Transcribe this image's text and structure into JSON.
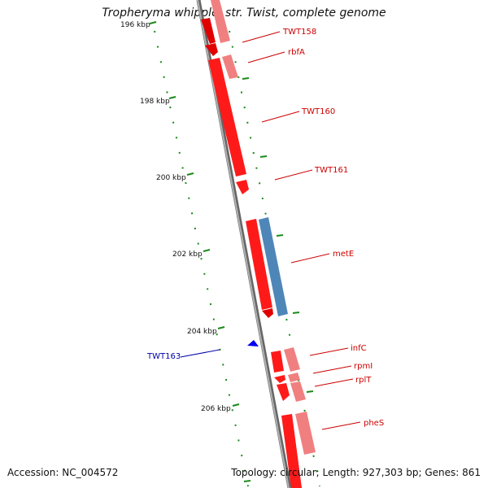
{
  "title": "Tropheryma whipplei str. Twist, complete genome",
  "footer": {
    "accession_label": "Accession: NC_004572",
    "summary": "Topology: circular; Length: 927,303 bp; Genes: 861"
  },
  "colors": {
    "forward_gene": "#ff0000",
    "forward_gene_light": "#f08080",
    "reverse_gene": "#0000cc",
    "blue_feature": "#4f86b8",
    "backbone": "#8a8a8a",
    "tick": "#1a8a1a",
    "label_forward": "#cc0000",
    "label_reverse": "#0000aa"
  },
  "scale": {
    "unit": "kbp",
    "ticks": [
      "196 kbp",
      "198 kbp",
      "200 kbp",
      "202 kbp",
      "204 kbp",
      "206 kbp"
    ]
  },
  "genes": [
    {
      "name": "TWT158",
      "strand": "forward"
    },
    {
      "name": "rbfA",
      "strand": "forward"
    },
    {
      "name": "TWT160",
      "strand": "forward"
    },
    {
      "name": "TWT161",
      "strand": "forward"
    },
    {
      "name": "metE",
      "strand": "forward"
    },
    {
      "name": "TWT163",
      "strand": "reverse"
    },
    {
      "name": "infC",
      "strand": "forward"
    },
    {
      "name": "rpmI",
      "strand": "forward"
    },
    {
      "name": "rplT",
      "strand": "forward"
    },
    {
      "name": "pheS",
      "strand": "forward"
    }
  ]
}
